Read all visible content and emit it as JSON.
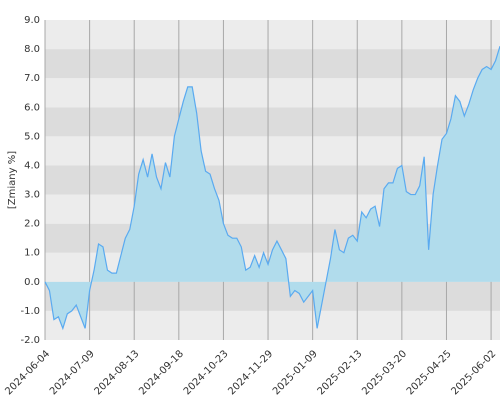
{
  "chart_data": {
    "type": "area",
    "y_label": "[Zmiany %]",
    "categories": [
      "2024-06-04",
      null,
      null,
      null,
      null,
      null,
      null,
      null,
      null,
      null,
      "2024-07-09",
      null,
      null,
      null,
      null,
      null,
      null,
      null,
      null,
      null,
      "2024-08-13",
      null,
      null,
      null,
      null,
      null,
      null,
      null,
      null,
      null,
      "2024-09-18",
      null,
      null,
      null,
      null,
      null,
      null,
      null,
      null,
      null,
      "2024-10-23",
      null,
      null,
      null,
      null,
      null,
      null,
      null,
      null,
      null,
      "2024-11-29",
      null,
      null,
      null,
      null,
      null,
      null,
      null,
      null,
      null,
      "2025-01-09",
      null,
      null,
      null,
      null,
      null,
      null,
      null,
      null,
      null,
      "2025-02-13",
      null,
      null,
      null,
      null,
      null,
      null,
      null,
      null,
      null,
      "2025-03-20",
      null,
      null,
      null,
      null,
      null,
      null,
      null,
      null,
      null,
      "2025-04-25",
      null,
      null,
      null,
      null,
      null,
      null,
      null,
      null,
      null,
      "2025-06-02",
      null,
      null
    ],
    "values": [
      0.0,
      -0.3,
      -1.3,
      -1.2,
      -1.6,
      -1.1,
      -1.0,
      -0.8,
      -1.2,
      -1.6,
      -0.3,
      0.4,
      1.3,
      1.2,
      0.4,
      0.3,
      0.3,
      0.9,
      1.5,
      1.8,
      2.6,
      3.7,
      4.2,
      3.6,
      4.4,
      3.6,
      3.2,
      4.1,
      3.6,
      5.0,
      5.6,
      6.2,
      6.7,
      6.7,
      5.8,
      4.5,
      3.8,
      3.7,
      3.2,
      2.8,
      2.0,
      1.6,
      1.5,
      1.5,
      1.2,
      0.4,
      0.5,
      0.9,
      0.5,
      1.0,
      0.6,
      1.1,
      1.4,
      1.1,
      0.8,
      -0.5,
      -0.3,
      -0.4,
      -0.7,
      -0.5,
      -0.3,
      -1.6,
      -0.8,
      0.0,
      0.8,
      1.8,
      1.1,
      1.0,
      1.5,
      1.6,
      1.4,
      2.4,
      2.2,
      2.5,
      2.6,
      1.9,
      3.2,
      3.4,
      3.4,
      3.9,
      4.0,
      3.1,
      3.0,
      3.0,
      3.3,
      4.3,
      1.1,
      3.0,
      4.0,
      4.9,
      5.1,
      5.6,
      6.4,
      6.2,
      5.7,
      6.1,
      6.6,
      7.0,
      7.3,
      7.4,
      7.3,
      7.6,
      8.1
    ],
    "line_color": "#5aaaf0",
    "fill_color": "#b1dcec",
    "ylim": [
      -2,
      9
    ],
    "yticks": [
      {
        "value": -2,
        "label": "-2.0"
      },
      {
        "value": -1,
        "label": "-1.0"
      },
      {
        "value": 0,
        "label": "0.0"
      },
      {
        "value": 1,
        "label": "1.0"
      },
      {
        "value": 2,
        "label": "2.0"
      },
      {
        "value": 3,
        "label": "3.0"
      },
      {
        "value": 4,
        "label": "4.0"
      },
      {
        "value": 5,
        "label": "5.0"
      },
      {
        "value": 6,
        "label": "6.0"
      },
      {
        "value": 7,
        "label": "7.0"
      },
      {
        "value": 8,
        "label": "8.0"
      },
      {
        "value": 9,
        "label": "9.0"
      }
    ],
    "grid": true
  }
}
